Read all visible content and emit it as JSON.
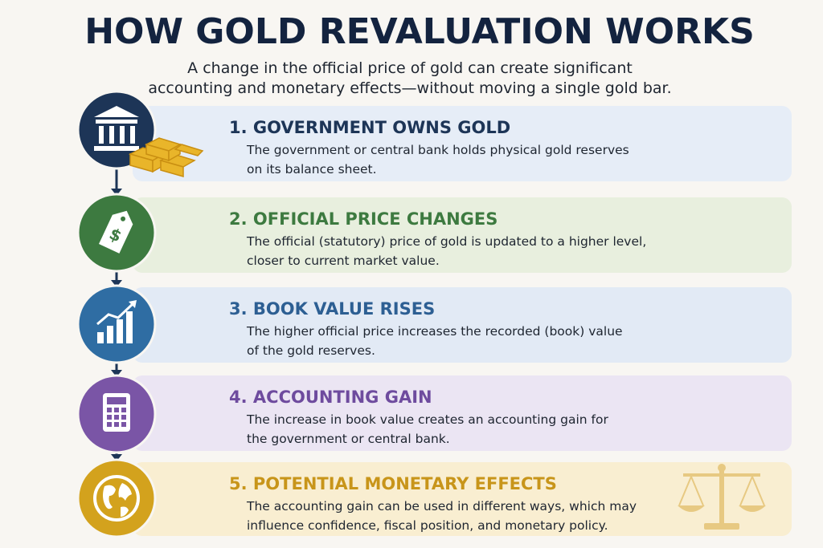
{
  "header": {
    "title": "HOW GOLD REVALUATION WORKS",
    "subtitle": [
      "A change in the official price of gold can create significant",
      "accounting and monetary effects—without moving a single gold bar."
    ]
  },
  "steps": [
    {
      "title": "1. GOVERNMENT OWNS GOLD",
      "description": [
        "The government or central bank holds physical gold reserves",
        "on its balance sheet."
      ]
    },
    {
      "title": "2. OFFICIAL PRICE CHANGES",
      "description": [
        "The official (statutory) price of gold is updated to a higher level,",
        "closer to current market value."
      ]
    },
    {
      "title": "3. BOOK VALUE RISES",
      "description": [
        "The higher official price increases the recorded (book) value",
        "of the gold reserves."
      ]
    },
    {
      "title": "4. ACCOUNTING GAIN",
      "description": [
        "The increase in book value creates an accounting gain for",
        "the government or central bank."
      ]
    },
    {
      "title": "5. POTENTIAL MONETARY EFFECTS",
      "description": [
        "The accounting gain can be used in different ways, which may",
        "influence confidence, fiscal position, and monetary policy."
      ]
    }
  ]
}
